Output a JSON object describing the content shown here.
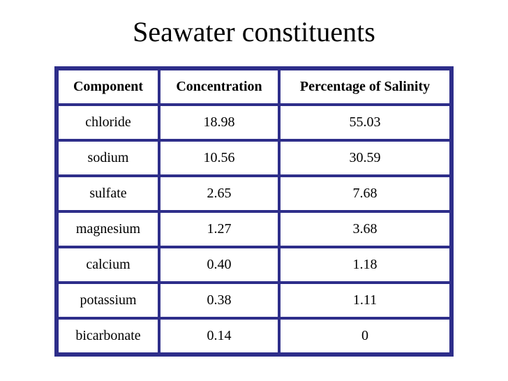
{
  "title": "Seawater constituents",
  "table": {
    "headers": [
      "Component",
      "Concentration",
      "Percentage of Salinity"
    ],
    "rows": [
      [
        "chloride",
        "18.98",
        "55.03"
      ],
      [
        "sodium",
        "10.56",
        "30.59"
      ],
      [
        "sulfate",
        "2.65",
        "7.68"
      ],
      [
        "magnesium",
        "1.27",
        "3.68"
      ],
      [
        "calcium",
        "0.40",
        "1.18"
      ],
      [
        "potassium",
        "0.38",
        "1.11"
      ],
      [
        "bicarbonate",
        "0.14",
        "0"
      ]
    ]
  },
  "colors": {
    "table_border": "#2e2e8a",
    "background": "#ffffff",
    "text": "#000000"
  }
}
